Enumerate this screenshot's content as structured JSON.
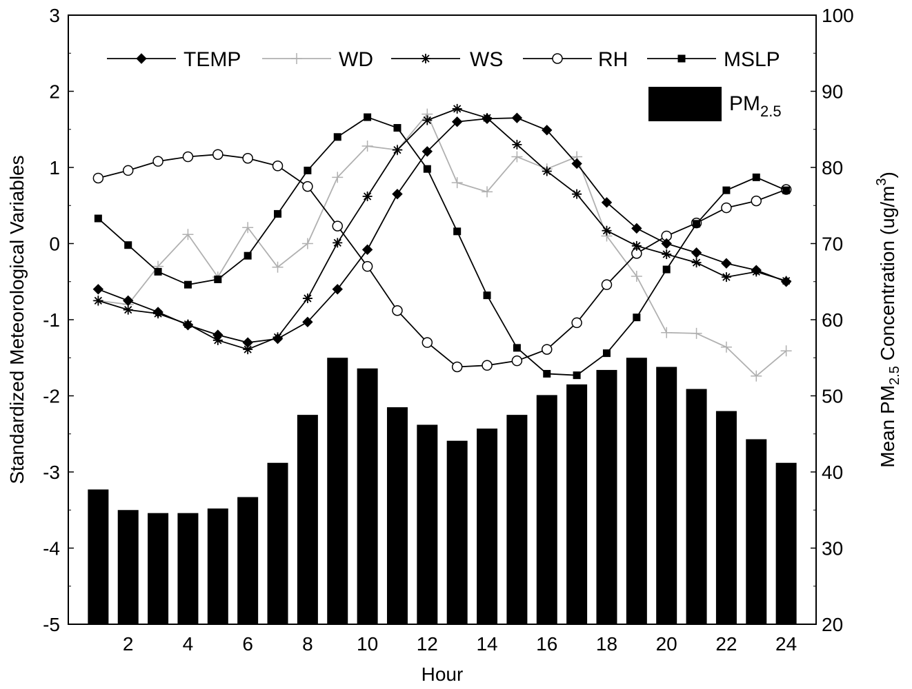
{
  "chart_data": {
    "type": "bar+line",
    "x": [
      1,
      2,
      3,
      4,
      5,
      6,
      7,
      8,
      9,
      10,
      11,
      12,
      13,
      14,
      15,
      16,
      17,
      18,
      19,
      20,
      21,
      22,
      23,
      24
    ],
    "xlabel": "Hour",
    "xlim": [
      0,
      25
    ],
    "xticks": [
      "2",
      "4",
      "6",
      "8",
      "10",
      "12",
      "14",
      "16",
      "18",
      "20",
      "22",
      "24"
    ],
    "xtick_values": [
      2,
      4,
      6,
      8,
      10,
      12,
      14,
      16,
      18,
      20,
      22,
      24
    ],
    "ylabel": "Standardized Meteorological Variables",
    "ylim": [
      -5,
      3
    ],
    "yticks": [
      "-5",
      "-4",
      "-3",
      "-2",
      "-1",
      "0",
      "1",
      "2",
      "3"
    ],
    "ytick_values": [
      -5,
      -4,
      -3,
      -2,
      -1,
      0,
      1,
      2,
      3
    ],
    "y2label_prefix": "Mean PM",
    "y2label_sub": "2.5",
    "y2label_mid": " Concentration (ug/m",
    "y2label_sup": "3",
    "y2label_suffix": ")",
    "y2lim": [
      20,
      100
    ],
    "y2ticks": [
      "20",
      "30",
      "40",
      "50",
      "60",
      "70",
      "80",
      "90",
      "100"
    ],
    "y2tick_values": [
      20,
      30,
      40,
      50,
      60,
      70,
      80,
      90,
      100
    ],
    "bars": {
      "name_main": "PM",
      "name_sub": "2.5",
      "values": [
        37.7,
        35.0,
        34.6,
        34.6,
        35.2,
        36.7,
        41.2,
        47.5,
        55.0,
        53.6,
        48.5,
        46.2,
        44.1,
        45.7,
        47.5,
        50.1,
        51.5,
        53.4,
        55.0,
        53.8,
        50.9,
        48.0,
        44.3,
        41.2
      ],
      "color": "#000000"
    },
    "series": [
      {
        "name": "TEMP",
        "marker": "diamond",
        "color": "#000000",
        "values": [
          -0.6,
          -0.75,
          -0.9,
          -1.07,
          -1.2,
          -1.3,
          -1.25,
          -1.03,
          -0.6,
          -0.08,
          0.65,
          1.21,
          1.6,
          1.64,
          1.65,
          1.49,
          1.05,
          0.54,
          0.2,
          0.0,
          -0.12,
          -0.26,
          -0.35,
          -0.5
        ]
      },
      {
        "name": "WD",
        "marker": "plus",
        "color": "#b0b0b0",
        "values": [
          -0.75,
          -0.8,
          -0.3,
          0.12,
          -0.44,
          0.21,
          -0.31,
          0.0,
          0.87,
          1.28,
          1.23,
          1.7,
          0.8,
          0.68,
          1.14,
          0.98,
          1.14,
          0.1,
          -0.43,
          -1.17,
          -1.18,
          -1.36,
          -1.74,
          -1.41
        ]
      },
      {
        "name": "WS",
        "marker": "star",
        "color": "#000000",
        "values": [
          -0.75,
          -0.87,
          -0.92,
          -1.06,
          -1.27,
          -1.39,
          -1.23,
          -0.72,
          0.01,
          0.62,
          1.23,
          1.62,
          1.77,
          1.65,
          1.3,
          0.95,
          0.65,
          0.17,
          -0.03,
          -0.14,
          -0.25,
          -0.44,
          -0.37,
          -0.49
        ]
      },
      {
        "name": "RH",
        "marker": "circle-open",
        "color": "#000000",
        "values": [
          0.86,
          0.96,
          1.08,
          1.14,
          1.17,
          1.12,
          1.02,
          0.75,
          0.23,
          -0.3,
          -0.88,
          -1.3,
          -1.62,
          -1.6,
          -1.54,
          -1.39,
          -1.04,
          -0.54,
          -0.13,
          0.1,
          0.27,
          0.47,
          0.56,
          0.71
        ]
      },
      {
        "name": "MSLP",
        "marker": "square",
        "color": "#000000",
        "values": [
          0.33,
          -0.02,
          -0.37,
          -0.54,
          -0.47,
          -0.16,
          0.39,
          0.96,
          1.4,
          1.66,
          1.52,
          0.98,
          0.16,
          -0.68,
          -1.37,
          -1.71,
          -1.73,
          -1.44,
          -0.97,
          -0.34,
          0.26,
          0.7,
          0.87,
          0.7
        ]
      }
    ],
    "legend_position": "top"
  }
}
